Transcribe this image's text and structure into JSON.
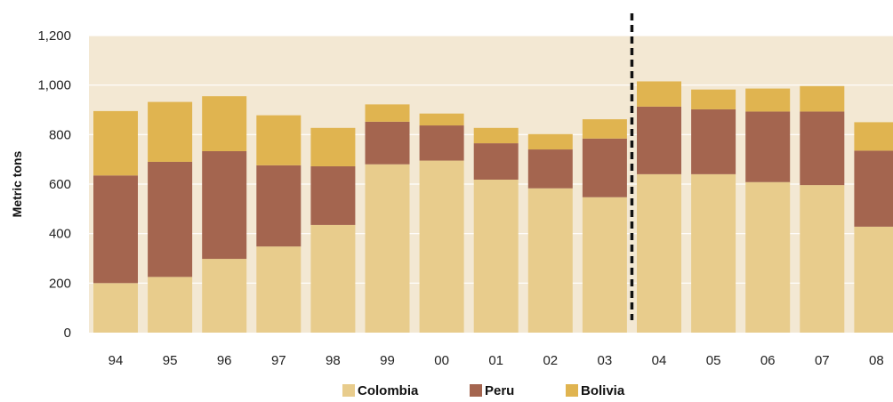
{
  "chart_data": {
    "type": "bar",
    "stacked": true,
    "categories": [
      "94",
      "95",
      "96",
      "97",
      "98",
      "99",
      "00",
      "01",
      "02",
      "03",
      "04",
      "05",
      "06",
      "07",
      "08"
    ],
    "series": [
      {
        "name": "Colombia",
        "color": "#e8cc8c",
        "values": [
          200,
          225,
          298,
          348,
          435,
          680,
          695,
          618,
          583,
          547,
          640,
          640,
          608,
          596,
          428
        ]
      },
      {
        "name": "Peru",
        "color": "#a4654f",
        "values": [
          435,
          465,
          435,
          328,
          237,
          172,
          142,
          147,
          157,
          237,
          273,
          262,
          285,
          297,
          307
        ]
      },
      {
        "name": "Bolivia",
        "color": "#e0b450",
        "values": [
          260,
          242,
          222,
          202,
          155,
          70,
          48,
          62,
          62,
          78,
          102,
          80,
          93,
          103,
          115
        ]
      }
    ],
    "ylabel": "Metric tons",
    "ylim": [
      0,
      1200
    ],
    "y_ticks": [
      "0",
      "200",
      "400",
      "600",
      "800",
      "1,000",
      "1,200"
    ],
    "y_tick_values": [
      0,
      200,
      400,
      600,
      800,
      1000,
      1200
    ],
    "grid": true,
    "plot_background": "#f3e8d3",
    "divider_after_category": "03",
    "legend_position": "bottom"
  }
}
